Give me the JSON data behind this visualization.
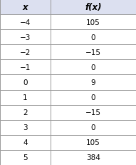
{
  "x_values": [
    -4,
    -3,
    -2,
    -1,
    0,
    1,
    2,
    3,
    4,
    5
  ],
  "fx_values": [
    105,
    0,
    -15,
    0,
    9,
    0,
    -15,
    0,
    105,
    384
  ],
  "col_headers": [
    "x",
    "f(x)"
  ],
  "header_bg": "#dce0f0",
  "row_bg": "#ffffff",
  "border_color": "#999999",
  "text_color": "#000000",
  "cell_font_size": 7.5,
  "header_font_size": 8.5,
  "fig_width": 1.91,
  "fig_height": 2.32,
  "dpi": 100
}
